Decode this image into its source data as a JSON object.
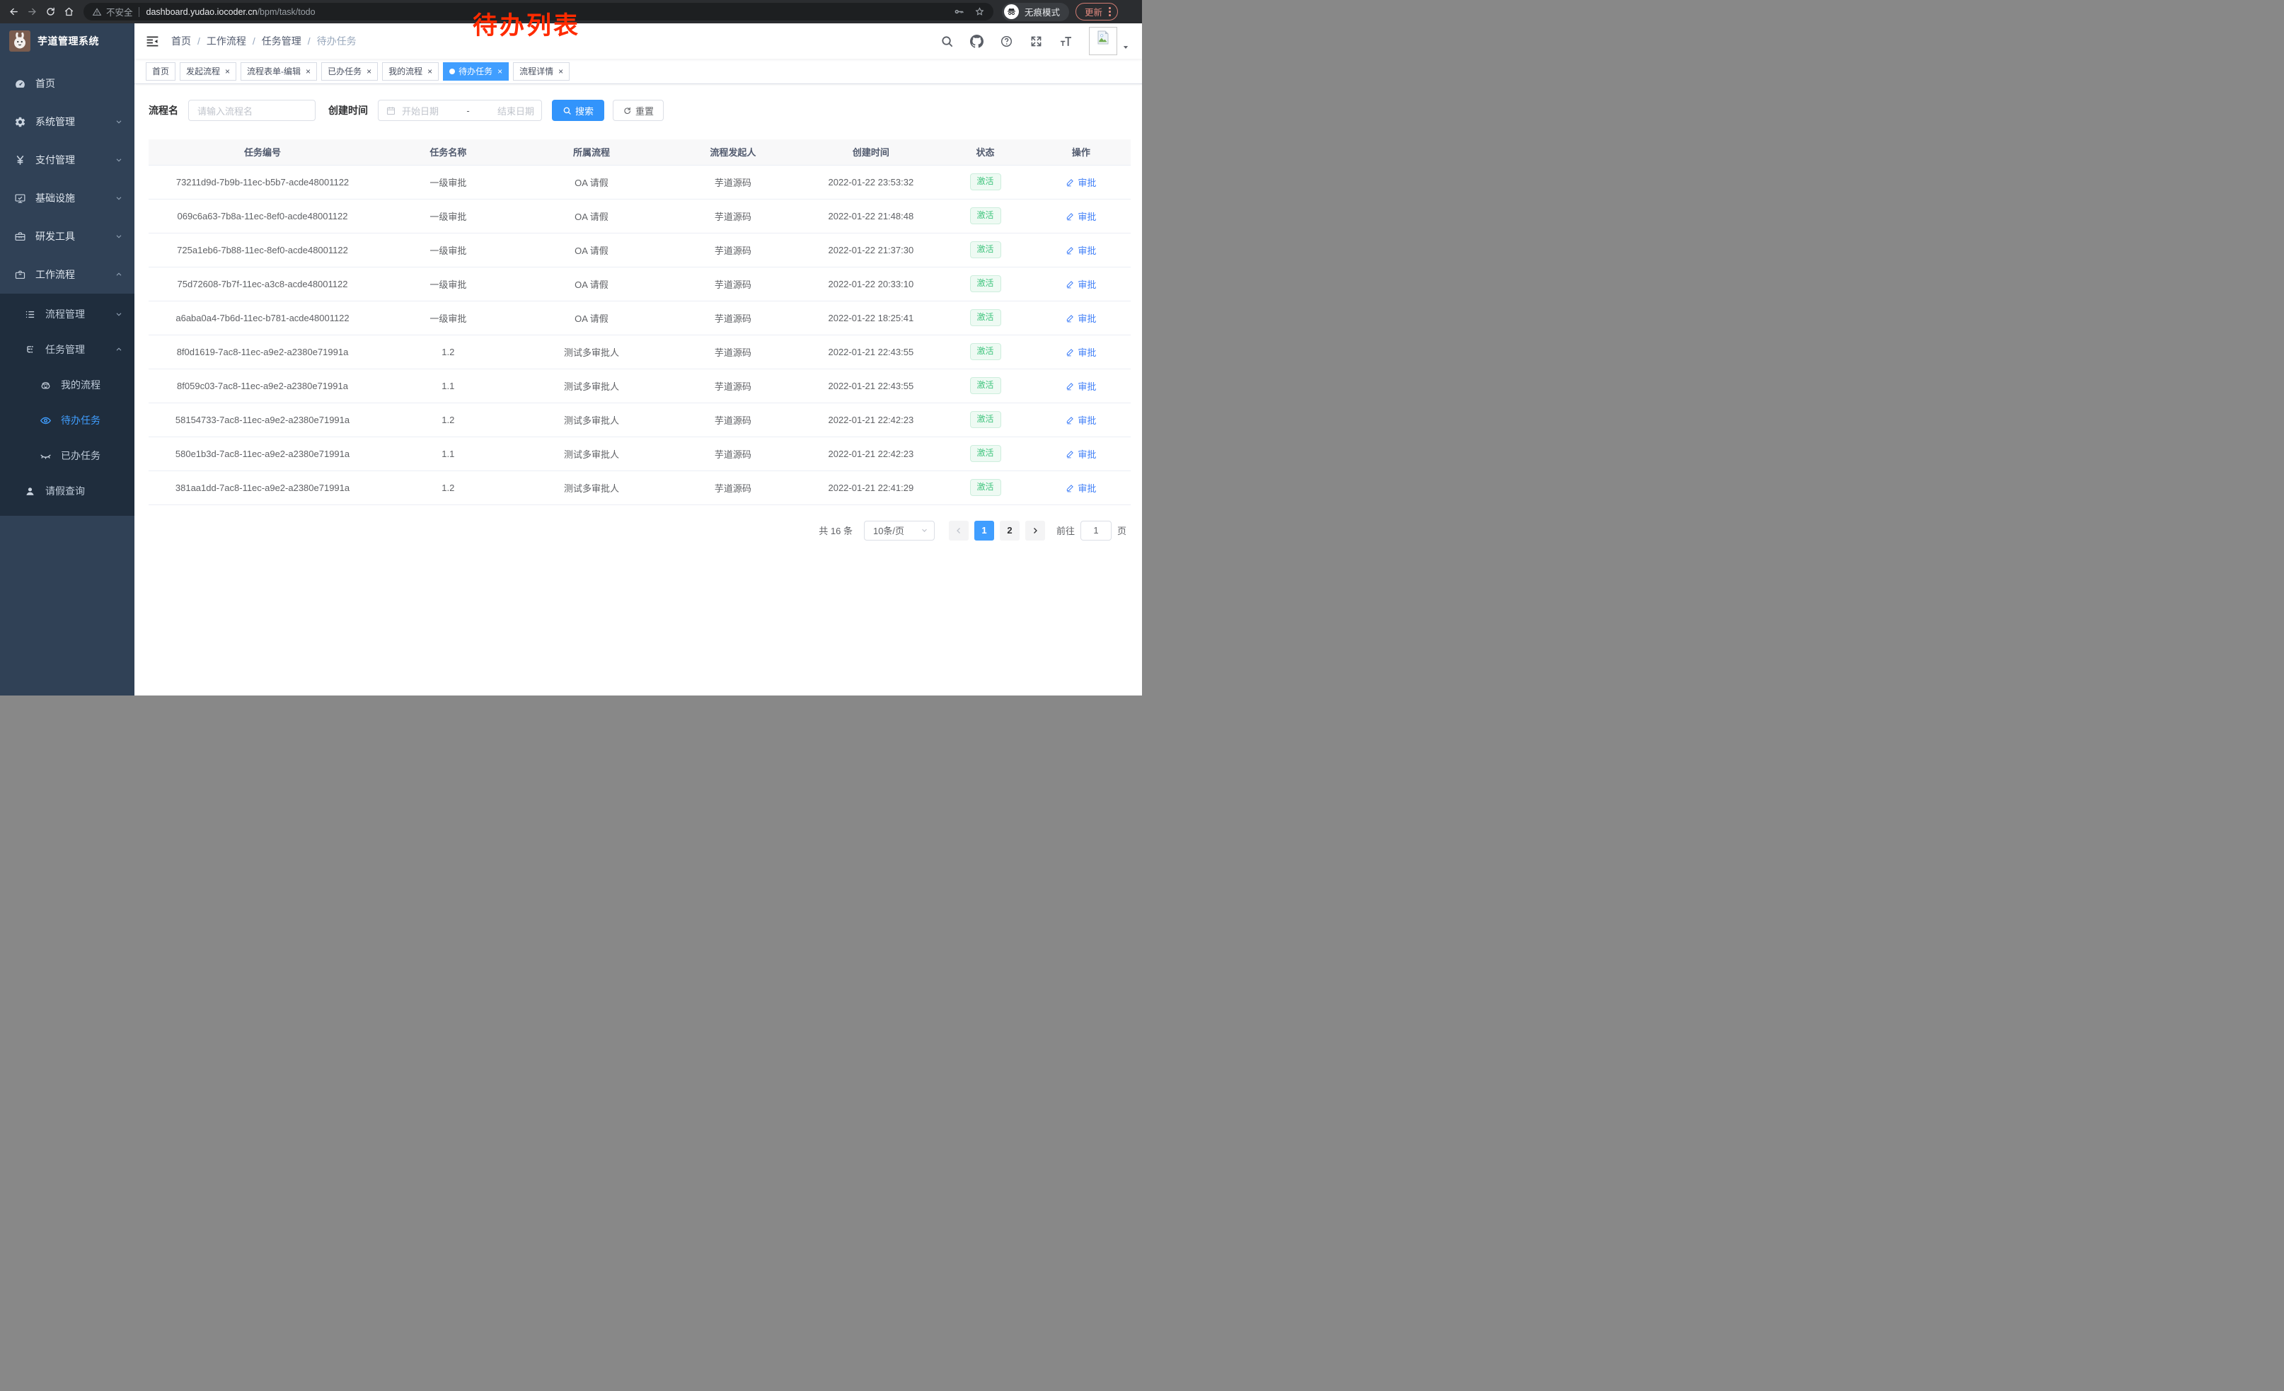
{
  "annotation": {
    "text": "待办列表"
  },
  "browser": {
    "security_label": "不安全",
    "url_host": "dashboard.yudao.iocoder.cn",
    "url_path": "/bpm/task/todo",
    "incognito_label": "无痕模式",
    "update_label": "更新"
  },
  "sidebar": {
    "title": "芋道管理系统",
    "items": [
      {
        "key": "home",
        "label": "首页",
        "icon": "dashboard-icon",
        "level": 1,
        "chevron": null,
        "submenu": false,
        "active": false
      },
      {
        "key": "system",
        "label": "系统管理",
        "icon": "gear-icon",
        "level": 1,
        "chevron": "down",
        "submenu": false,
        "active": false
      },
      {
        "key": "payment",
        "label": "支付管理",
        "icon": "yen-icon",
        "level": 1,
        "chevron": "down",
        "submenu": false,
        "active": false
      },
      {
        "key": "infra",
        "label": "基础设施",
        "icon": "monitor-icon",
        "level": 1,
        "chevron": "down",
        "submenu": false,
        "active": false
      },
      {
        "key": "devtools",
        "label": "研发工具",
        "icon": "toolbox-icon",
        "level": 1,
        "chevron": "down",
        "submenu": false,
        "active": false
      },
      {
        "key": "workflow",
        "label": "工作流程",
        "icon": "briefcase-icon",
        "level": 1,
        "chevron": "up",
        "submenu": false,
        "active": false
      },
      {
        "key": "process-mgmt",
        "label": "流程管理",
        "icon": "list-tree-icon",
        "level": 2,
        "chevron": "down",
        "submenu": true,
        "active": false
      },
      {
        "key": "task-mgmt",
        "label": "任务管理",
        "icon": "flow-icon",
        "level": 2,
        "chevron": "up",
        "submenu": true,
        "active": false
      },
      {
        "key": "my-process",
        "label": "我的流程",
        "icon": "robot-icon",
        "level": 3,
        "chevron": null,
        "submenu": true,
        "active": false
      },
      {
        "key": "todo-task",
        "label": "待办任务",
        "icon": "eye-open-icon",
        "level": 3,
        "chevron": null,
        "submenu": true,
        "active": true
      },
      {
        "key": "done-task",
        "label": "已办任务",
        "icon": "eye-closed-icon",
        "level": 3,
        "chevron": null,
        "submenu": true,
        "active": false
      },
      {
        "key": "leave-query",
        "label": "请假查询",
        "icon": "user-icon",
        "level": 2,
        "chevron": null,
        "submenu": true,
        "active": false
      }
    ]
  },
  "navbar": {
    "breadcrumbs": [
      "首页",
      "工作流程",
      "任务管理",
      "待办任务"
    ]
  },
  "tabs": [
    {
      "label": "首页",
      "closable": false,
      "active": false
    },
    {
      "label": "发起流程",
      "closable": true,
      "active": false
    },
    {
      "label": "流程表单-编辑",
      "closable": true,
      "active": false
    },
    {
      "label": "已办任务",
      "closable": true,
      "active": false
    },
    {
      "label": "我的流程",
      "closable": true,
      "active": false
    },
    {
      "label": "待办任务",
      "closable": true,
      "active": true
    },
    {
      "label": "流程详情",
      "closable": true,
      "active": false
    }
  ],
  "filters": {
    "process_name_label": "流程名",
    "process_name_placeholder": "请输入流程名",
    "create_time_label": "创建时间",
    "start_placeholder": "开始日期",
    "range_separator": "-",
    "end_placeholder": "结束日期",
    "search_label": "搜索",
    "reset_label": "重置"
  },
  "table": {
    "headers": [
      "任务编号",
      "任务名称",
      "所属流程",
      "流程发起人",
      "创建时间",
      "状态",
      "操作"
    ],
    "rows": [
      {
        "id": "73211d9d-7b9b-11ec-b5b7-acde48001122",
        "name": "一级审批",
        "process": "OA 请假",
        "initiator": "芋道源码",
        "time": "2022-01-22 23:53:32",
        "status": "激活",
        "action": "审批"
      },
      {
        "id": "069c6a63-7b8a-11ec-8ef0-acde48001122",
        "name": "一级审批",
        "process": "OA 请假",
        "initiator": "芋道源码",
        "time": "2022-01-22 21:48:48",
        "status": "激活",
        "action": "审批"
      },
      {
        "id": "725a1eb6-7b88-11ec-8ef0-acde48001122",
        "name": "一级审批",
        "process": "OA 请假",
        "initiator": "芋道源码",
        "time": "2022-01-22 21:37:30",
        "status": "激活",
        "action": "审批"
      },
      {
        "id": "75d72608-7b7f-11ec-a3c8-acde48001122",
        "name": "一级审批",
        "process": "OA 请假",
        "initiator": "芋道源码",
        "time": "2022-01-22 20:33:10",
        "status": "激活",
        "action": "审批"
      },
      {
        "id": "a6aba0a4-7b6d-11ec-b781-acde48001122",
        "name": "一级审批",
        "process": "OA 请假",
        "initiator": "芋道源码",
        "time": "2022-01-22 18:25:41",
        "status": "激活",
        "action": "审批"
      },
      {
        "id": "8f0d1619-7ac8-11ec-a9e2-a2380e71991a",
        "name": "1.2",
        "process": "测试多审批人",
        "initiator": "芋道源码",
        "time": "2022-01-21 22:43:55",
        "status": "激活",
        "action": "审批"
      },
      {
        "id": "8f059c03-7ac8-11ec-a9e2-a2380e71991a",
        "name": "1.1",
        "process": "测试多审批人",
        "initiator": "芋道源码",
        "time": "2022-01-21 22:43:55",
        "status": "激活",
        "action": "审批"
      },
      {
        "id": "58154733-7ac8-11ec-a9e2-a2380e71991a",
        "name": "1.2",
        "process": "测试多审批人",
        "initiator": "芋道源码",
        "time": "2022-01-21 22:42:23",
        "status": "激活",
        "action": "审批"
      },
      {
        "id": "580e1b3d-7ac8-11ec-a9e2-a2380e71991a",
        "name": "1.1",
        "process": "测试多审批人",
        "initiator": "芋道源码",
        "time": "2022-01-21 22:42:23",
        "status": "激活",
        "action": "审批"
      },
      {
        "id": "381aa1dd-7ac8-11ec-a9e2-a2380e71991a",
        "name": "1.2",
        "process": "测试多审批人",
        "initiator": "芋道源码",
        "time": "2022-01-21 22:41:29",
        "status": "激活",
        "action": "审批"
      }
    ]
  },
  "pagination": {
    "total_label": "共 16 条",
    "page_size_label": "10条/页",
    "pages": [
      "1",
      "2"
    ],
    "active_page": "1",
    "goto_label": "前往",
    "goto_value": "1",
    "page_unit": "页"
  },
  "colors": {
    "accent_blue": "#409eff",
    "tag_green": "#42c57f",
    "annotation_red": "#ff2b00",
    "sidebar_bg": "#304156",
    "submenu_bg": "#1f2d3d"
  }
}
